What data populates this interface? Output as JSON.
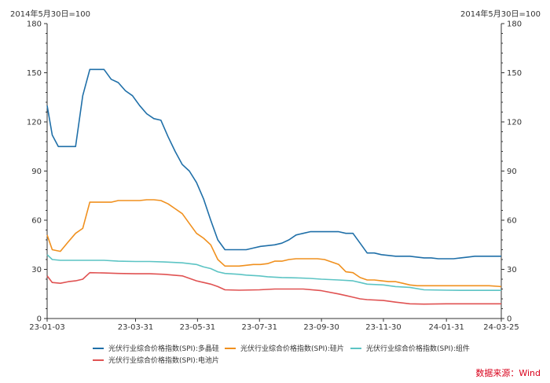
{
  "unit_left": "2014年5月30日=100",
  "unit_right": "2014年5月30日=100",
  "source": "数据来源：Wind",
  "colors": {
    "multi_si": "#1f6fa8",
    "wafer": "#f0901e",
    "module": "#5cc4c4",
    "cell": "#e05252",
    "axis": "#333333"
  },
  "chart_data": {
    "type": "line",
    "title": "",
    "xlabel": "",
    "ylabel": "",
    "ylim": [
      0,
      180
    ],
    "yticks": [
      0,
      30,
      60,
      90,
      120,
      150,
      180
    ],
    "grid": false,
    "legend_position": "bottom",
    "x_tick_labels": [
      "23-01-03",
      "23-03-31",
      "23-05-31",
      "23-07-31",
      "23-09-30",
      "23-11-30",
      "24-01-31",
      "24-03-25"
    ],
    "x_tick_dates": [
      "2023-01-03",
      "2023-03-31",
      "2023-05-31",
      "2023-07-31",
      "2023-09-30",
      "2023-11-30",
      "2024-01-31",
      "2024-03-25"
    ],
    "series": [
      {
        "name": "光伏行业综合价格指数(SPI):多晶硅",
        "color_key": "multi_si",
        "points": [
          [
            "2023-01-03",
            130
          ],
          [
            "2023-01-08",
            112
          ],
          [
            "2023-01-14",
            105
          ],
          [
            "2023-01-22",
            105
          ],
          [
            "2023-01-31",
            105
          ],
          [
            "2023-02-07",
            136
          ],
          [
            "2023-02-14",
            152
          ],
          [
            "2023-02-21",
            152
          ],
          [
            "2023-02-28",
            152
          ],
          [
            "2023-03-07",
            146
          ],
          [
            "2023-03-14",
            144
          ],
          [
            "2023-03-21",
            139
          ],
          [
            "2023-03-28",
            136
          ],
          [
            "2023-04-04",
            130
          ],
          [
            "2023-04-11",
            125
          ],
          [
            "2023-04-18",
            122
          ],
          [
            "2023-04-25",
            121
          ],
          [
            "2023-05-02",
            111
          ],
          [
            "2023-05-09",
            102
          ],
          [
            "2023-05-16",
            94
          ],
          [
            "2023-05-23",
            90
          ],
          [
            "2023-05-30",
            83
          ],
          [
            "2023-06-06",
            73
          ],
          [
            "2023-06-13",
            60
          ],
          [
            "2023-06-20",
            48
          ],
          [
            "2023-06-27",
            42
          ],
          [
            "2023-07-04",
            42
          ],
          [
            "2023-07-11",
            42
          ],
          [
            "2023-07-18",
            42
          ],
          [
            "2023-07-25",
            43
          ],
          [
            "2023-08-01",
            44
          ],
          [
            "2023-08-08",
            44.5
          ],
          [
            "2023-08-15",
            45
          ],
          [
            "2023-08-22",
            46
          ],
          [
            "2023-08-29",
            48
          ],
          [
            "2023-09-05",
            51
          ],
          [
            "2023-09-12",
            52
          ],
          [
            "2023-09-19",
            53
          ],
          [
            "2023-09-26",
            53
          ],
          [
            "2023-10-03",
            53
          ],
          [
            "2023-10-10",
            53
          ],
          [
            "2023-10-17",
            53
          ],
          [
            "2023-10-24",
            52
          ],
          [
            "2023-10-31",
            52
          ],
          [
            "2023-11-07",
            46
          ],
          [
            "2023-11-14",
            40
          ],
          [
            "2023-11-21",
            40
          ],
          [
            "2023-11-28",
            39
          ],
          [
            "2023-12-05",
            38.5
          ],
          [
            "2023-12-12",
            38
          ],
          [
            "2023-12-19",
            38
          ],
          [
            "2023-12-26",
            38
          ],
          [
            "2024-01-02",
            37.5
          ],
          [
            "2024-01-09",
            37
          ],
          [
            "2024-01-16",
            37
          ],
          [
            "2024-01-23",
            36.5
          ],
          [
            "2024-01-31",
            36.5
          ],
          [
            "2024-02-07",
            36.5
          ],
          [
            "2024-02-14",
            37
          ],
          [
            "2024-02-21",
            37.5
          ],
          [
            "2024-02-28",
            38
          ],
          [
            "2024-03-06",
            38
          ],
          [
            "2024-03-13",
            38
          ],
          [
            "2024-03-25",
            38
          ]
        ]
      },
      {
        "name": "光伏行业综合价格指数(SPI):硅片",
        "color_key": "wafer",
        "points": [
          [
            "2023-01-03",
            51
          ],
          [
            "2023-01-08",
            42
          ],
          [
            "2023-01-16",
            41
          ],
          [
            "2023-01-24",
            47
          ],
          [
            "2023-01-31",
            52
          ],
          [
            "2023-02-07",
            55
          ],
          [
            "2023-02-14",
            71
          ],
          [
            "2023-02-21",
            71
          ],
          [
            "2023-02-28",
            71
          ],
          [
            "2023-03-07",
            71
          ],
          [
            "2023-03-14",
            72
          ],
          [
            "2023-03-21",
            72
          ],
          [
            "2023-03-28",
            72
          ],
          [
            "2023-04-04",
            72
          ],
          [
            "2023-04-11",
            72.5
          ],
          [
            "2023-04-18",
            72.5
          ],
          [
            "2023-04-25",
            72
          ],
          [
            "2023-05-02",
            70
          ],
          [
            "2023-05-09",
            67
          ],
          [
            "2023-05-16",
            64
          ],
          [
            "2023-05-23",
            58
          ],
          [
            "2023-05-30",
            52
          ],
          [
            "2023-06-06",
            49
          ],
          [
            "2023-06-13",
            45
          ],
          [
            "2023-06-20",
            36
          ],
          [
            "2023-06-27",
            32
          ],
          [
            "2023-07-04",
            32
          ],
          [
            "2023-07-11",
            32
          ],
          [
            "2023-07-18",
            32.5
          ],
          [
            "2023-07-25",
            33
          ],
          [
            "2023-08-01",
            33
          ],
          [
            "2023-08-08",
            33.5
          ],
          [
            "2023-08-15",
            35
          ],
          [
            "2023-08-22",
            35
          ],
          [
            "2023-08-29",
            36
          ],
          [
            "2023-09-05",
            36.5
          ],
          [
            "2023-09-12",
            36.5
          ],
          [
            "2023-09-19",
            36.5
          ],
          [
            "2023-09-26",
            36.5
          ],
          [
            "2023-10-03",
            36
          ],
          [
            "2023-10-10",
            34.5
          ],
          [
            "2023-10-17",
            33
          ],
          [
            "2023-10-24",
            28.5
          ],
          [
            "2023-10-31",
            28
          ],
          [
            "2023-11-07",
            25
          ],
          [
            "2023-11-14",
            23.5
          ],
          [
            "2023-11-21",
            23.5
          ],
          [
            "2023-11-28",
            23
          ],
          [
            "2023-12-05",
            22.5
          ],
          [
            "2023-12-12",
            22.5
          ],
          [
            "2023-12-19",
            21.5
          ],
          [
            "2023-12-26",
            20.5
          ],
          [
            "2024-01-02",
            20
          ],
          [
            "2024-01-09",
            20
          ],
          [
            "2024-01-16",
            20
          ],
          [
            "2024-01-23",
            20
          ],
          [
            "2024-01-31",
            20
          ],
          [
            "2024-02-07",
            20
          ],
          [
            "2024-02-14",
            20
          ],
          [
            "2024-02-21",
            20
          ],
          [
            "2024-02-28",
            20
          ],
          [
            "2024-03-06",
            20
          ],
          [
            "2024-03-13",
            20
          ],
          [
            "2024-03-25",
            19.5
          ]
        ]
      },
      {
        "name": "光伏行业综合价格指数(SPI):组件",
        "color_key": "module",
        "points": [
          [
            "2023-01-03",
            39
          ],
          [
            "2023-01-08",
            36
          ],
          [
            "2023-01-16",
            35.5
          ],
          [
            "2023-01-31",
            35.5
          ],
          [
            "2023-02-14",
            35.5
          ],
          [
            "2023-02-28",
            35.5
          ],
          [
            "2023-03-14",
            35
          ],
          [
            "2023-03-31",
            34.8
          ],
          [
            "2023-04-14",
            34.8
          ],
          [
            "2023-04-28",
            34.5
          ],
          [
            "2023-05-16",
            34
          ],
          [
            "2023-05-30",
            33
          ],
          [
            "2023-06-06",
            31.5
          ],
          [
            "2023-06-13",
            30.5
          ],
          [
            "2023-06-20",
            28.5
          ],
          [
            "2023-06-27",
            27.5
          ],
          [
            "2023-07-11",
            27
          ],
          [
            "2023-07-18",
            26.5
          ],
          [
            "2023-07-31",
            26
          ],
          [
            "2023-08-08",
            25.5
          ],
          [
            "2023-08-22",
            25
          ],
          [
            "2023-09-05",
            24.8
          ],
          [
            "2023-09-19",
            24.5
          ],
          [
            "2023-09-30",
            24
          ],
          [
            "2023-10-17",
            23.5
          ],
          [
            "2023-10-31",
            23
          ],
          [
            "2023-11-07",
            22
          ],
          [
            "2023-11-14",
            21
          ],
          [
            "2023-11-30",
            20.5
          ],
          [
            "2023-12-12",
            19.5
          ],
          [
            "2023-12-26",
            19
          ],
          [
            "2024-01-09",
            17.5
          ],
          [
            "2024-01-31",
            17.3
          ],
          [
            "2024-02-14",
            17.2
          ],
          [
            "2024-02-28",
            17.2
          ],
          [
            "2024-03-25",
            17.2
          ]
        ]
      },
      {
        "name": "光伏行业综合价格指数(SPI):电池片",
        "color_key": "cell",
        "points": [
          [
            "2023-01-03",
            26
          ],
          [
            "2023-01-08",
            22
          ],
          [
            "2023-01-16",
            21.5
          ],
          [
            "2023-01-24",
            22.5
          ],
          [
            "2023-01-31",
            23
          ],
          [
            "2023-02-07",
            24
          ],
          [
            "2023-02-14",
            28
          ],
          [
            "2023-02-28",
            27.8
          ],
          [
            "2023-03-14",
            27.5
          ],
          [
            "2023-03-31",
            27.3
          ],
          [
            "2023-04-14",
            27.3
          ],
          [
            "2023-04-28",
            27
          ],
          [
            "2023-05-16",
            26
          ],
          [
            "2023-05-30",
            23
          ],
          [
            "2023-06-06",
            22
          ],
          [
            "2023-06-13",
            21
          ],
          [
            "2023-06-20",
            19.5
          ],
          [
            "2023-06-27",
            17.5
          ],
          [
            "2023-07-11",
            17.3
          ],
          [
            "2023-07-31",
            17.5
          ],
          [
            "2023-08-15",
            18
          ],
          [
            "2023-08-29",
            18
          ],
          [
            "2023-09-12",
            18
          ],
          [
            "2023-09-30",
            17
          ],
          [
            "2023-10-17",
            15
          ],
          [
            "2023-10-24",
            14
          ],
          [
            "2023-10-31",
            13
          ],
          [
            "2023-11-07",
            12
          ],
          [
            "2023-11-14",
            11.5
          ],
          [
            "2023-11-30",
            11
          ],
          [
            "2023-12-12",
            10
          ],
          [
            "2023-12-26",
            9
          ],
          [
            "2024-01-09",
            8.8
          ],
          [
            "2024-01-31",
            9
          ],
          [
            "2024-02-14",
            9
          ],
          [
            "2024-03-25",
            9
          ]
        ]
      }
    ]
  }
}
